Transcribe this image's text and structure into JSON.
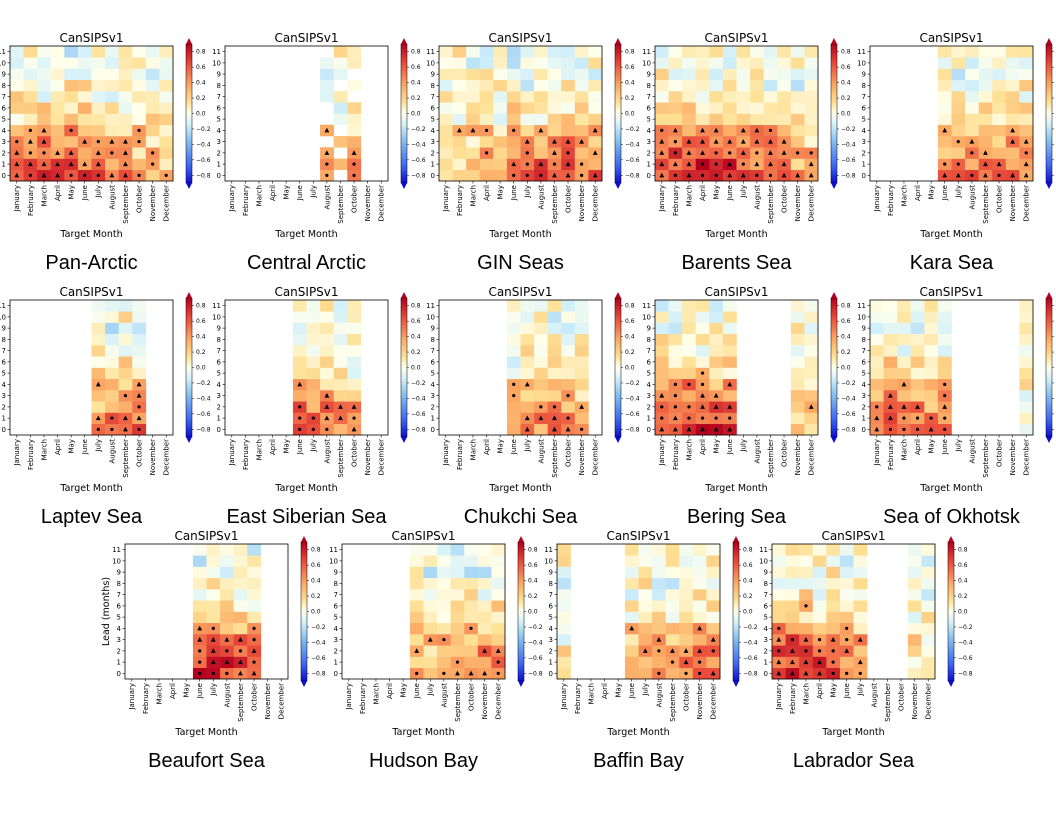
{
  "figure": {
    "common": {
      "model_title": "CanSIPSv1",
      "xlabel": "Target Month",
      "ylabel": "Lead (months)",
      "months": [
        "January",
        "February",
        "March",
        "April",
        "May",
        "June",
        "July",
        "August",
        "September",
        "October",
        "November",
        "December"
      ],
      "leads": [
        0,
        1,
        2,
        3,
        4,
        5,
        6,
        7,
        8,
        9,
        10,
        11
      ],
      "colorbar_ticks": [
        -0.8,
        -0.6,
        -0.4,
        -0.2,
        0.0,
        0.2,
        0.4,
        0.6,
        0.8
      ],
      "colorbar_range": [
        -0.9,
        0.9
      ],
      "colormap": "RdYlBu_r",
      "marker_legend": {
        "dot": "dot-marker",
        "triangle": "triangle-marker"
      }
    }
  },
  "chart_data": [
    {
      "region": "Pan-Arctic",
      "type": "heatmap",
      "active": [
        0,
        1,
        2,
        3,
        4,
        5,
        6,
        7,
        8,
        9,
        10,
        11
      ],
      "peak_month": 3,
      "peak": 0.85,
      "fill": 1.0,
      "pos_bias": 0.35,
      "seed": 1
    },
    {
      "region": "Central Arctic",
      "type": "heatmap",
      "active": [
        7,
        8,
        9
      ],
      "peak_month": 8,
      "peak": 0.9,
      "fill": 0.6,
      "pos_bias": 0.0,
      "seed": 2
    },
    {
      "region": "GIN Seas",
      "type": "heatmap",
      "active": [
        0,
        1,
        2,
        3,
        4,
        5,
        6,
        7,
        8,
        9,
        10,
        11
      ],
      "peak_month": 8,
      "peak": 0.85,
      "fill": 1.0,
      "pos_bias": 0.3,
      "seed": 3
    },
    {
      "region": "Barents Sea",
      "type": "heatmap",
      "active": [
        0,
        1,
        2,
        3,
        4,
        5,
        6,
        7,
        8,
        9,
        10,
        11
      ],
      "peak_month": 3,
      "peak": 0.85,
      "fill": 1.0,
      "pos_bias": 0.6,
      "seed": 4
    },
    {
      "region": "Kara Sea",
      "type": "heatmap",
      "active": [
        5,
        6,
        7,
        8,
        9,
        10,
        11
      ],
      "peak_month": 8,
      "peak": 0.85,
      "fill": 1.0,
      "pos_bias": 0.2,
      "seed": 5
    },
    {
      "region": "Laptev Sea",
      "type": "heatmap",
      "active": [
        6,
        7,
        8,
        9
      ],
      "peak_month": 8,
      "peak": 0.9,
      "fill": 1.0,
      "pos_bias": 0.1,
      "seed": 6
    },
    {
      "region": "East Siberian Sea",
      "type": "heatmap",
      "active": [
        5,
        6,
        7,
        8,
        9
      ],
      "peak_month": 5,
      "peak": 0.95,
      "fill": 1.0,
      "pos_bias": 0.2,
      "seed": 7
    },
    {
      "region": "Chukchi Sea",
      "type": "heatmap",
      "active": [
        5,
        6,
        7,
        8,
        9,
        10
      ],
      "peak_month": 8,
      "peak": 0.85,
      "fill": 1.0,
      "pos_bias": 0.1,
      "seed": 8
    },
    {
      "region": "Bering Sea",
      "type": "heatmap",
      "active": [
        0,
        1,
        2,
        3,
        4,
        5,
        10,
        11
      ],
      "peak_month": 2,
      "peak": 0.85,
      "fill": 1.0,
      "pos_bias": 0.45,
      "seed": 9
    },
    {
      "region": "Sea of Okhotsk",
      "type": "heatmap",
      "active": [
        0,
        1,
        2,
        3,
        4,
        5,
        11
      ],
      "peak_month": 1,
      "peak": 0.8,
      "fill": 1.0,
      "pos_bias": 0.35,
      "seed": 10
    },
    {
      "region": "Beaufort Sea",
      "type": "heatmap",
      "active": [
        5,
        6,
        7,
        8,
        9
      ],
      "peak_month": 6,
      "peak": 0.85,
      "fill": 1.0,
      "pos_bias": 0.45,
      "seed": 11
    },
    {
      "region": "Hudson Bay",
      "type": "heatmap",
      "active": [
        5,
        6,
        7,
        8,
        9,
        10,
        11
      ],
      "peak_month": 10,
      "peak": 0.8,
      "fill": 1.0,
      "pos_bias": 0.2,
      "seed": 12
    },
    {
      "region": "Baffin Bay",
      "type": "heatmap",
      "active": [
        0,
        5,
        6,
        7,
        8,
        9,
        10,
        11
      ],
      "peak_month": 10,
      "peak": 0.8,
      "fill": 1.0,
      "pos_bias": 0.2,
      "seed": 13
    },
    {
      "region": "Labrador Sea",
      "type": "heatmap",
      "active": [
        0,
        1,
        2,
        3,
        4,
        5,
        6,
        10,
        11
      ],
      "peak_month": 1,
      "peak": 0.85,
      "fill": 1.0,
      "pos_bias": 0.45,
      "seed": 14
    }
  ]
}
